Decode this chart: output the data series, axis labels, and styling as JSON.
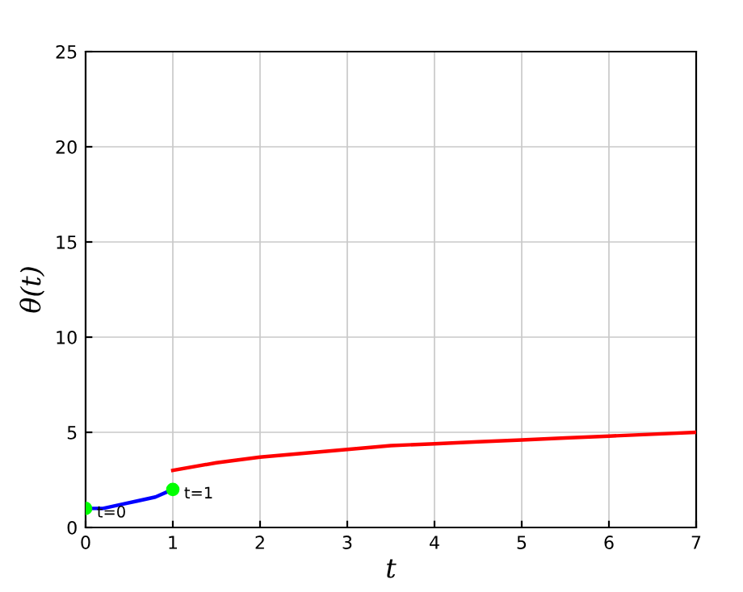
{
  "chart_data": {
    "type": "line",
    "xlabel": "t",
    "ylabel": "θ(t)",
    "xlim": [
      0,
      7
    ],
    "ylim": [
      0,
      25
    ],
    "xticks": [
      0,
      1,
      2,
      3,
      4,
      5,
      6,
      7
    ],
    "yticks": [
      0,
      5,
      10,
      15,
      20,
      25
    ],
    "grid": true,
    "series": [
      {
        "color": "#0000ff",
        "x": [
          0,
          0.2,
          0.4,
          0.6,
          0.8,
          1
        ],
        "values": [
          1,
          1,
          1.2,
          1.4,
          1.6,
          2
        ]
      },
      {
        "color": "#ff0000",
        "x": [
          1,
          1.5,
          2,
          2.5,
          3,
          3.5,
          4,
          4.5,
          5,
          5.5,
          6,
          6.5,
          7
        ],
        "values": [
          3,
          3.4,
          3.7,
          3.9,
          4.1,
          4.3,
          4.4,
          4.5,
          4.6,
          4.7,
          4.8,
          4.9,
          5
        ]
      },
      {
        "type": "scatter",
        "color": "#00ff00",
        "marker": "circle",
        "x": [
          0,
          1
        ],
        "values": [
          1,
          2
        ]
      }
    ],
    "annotations": [
      {
        "text": "t=0",
        "x": 0,
        "y": 1
      },
      {
        "text": "t=1",
        "x": 1,
        "y": 2
      }
    ]
  }
}
